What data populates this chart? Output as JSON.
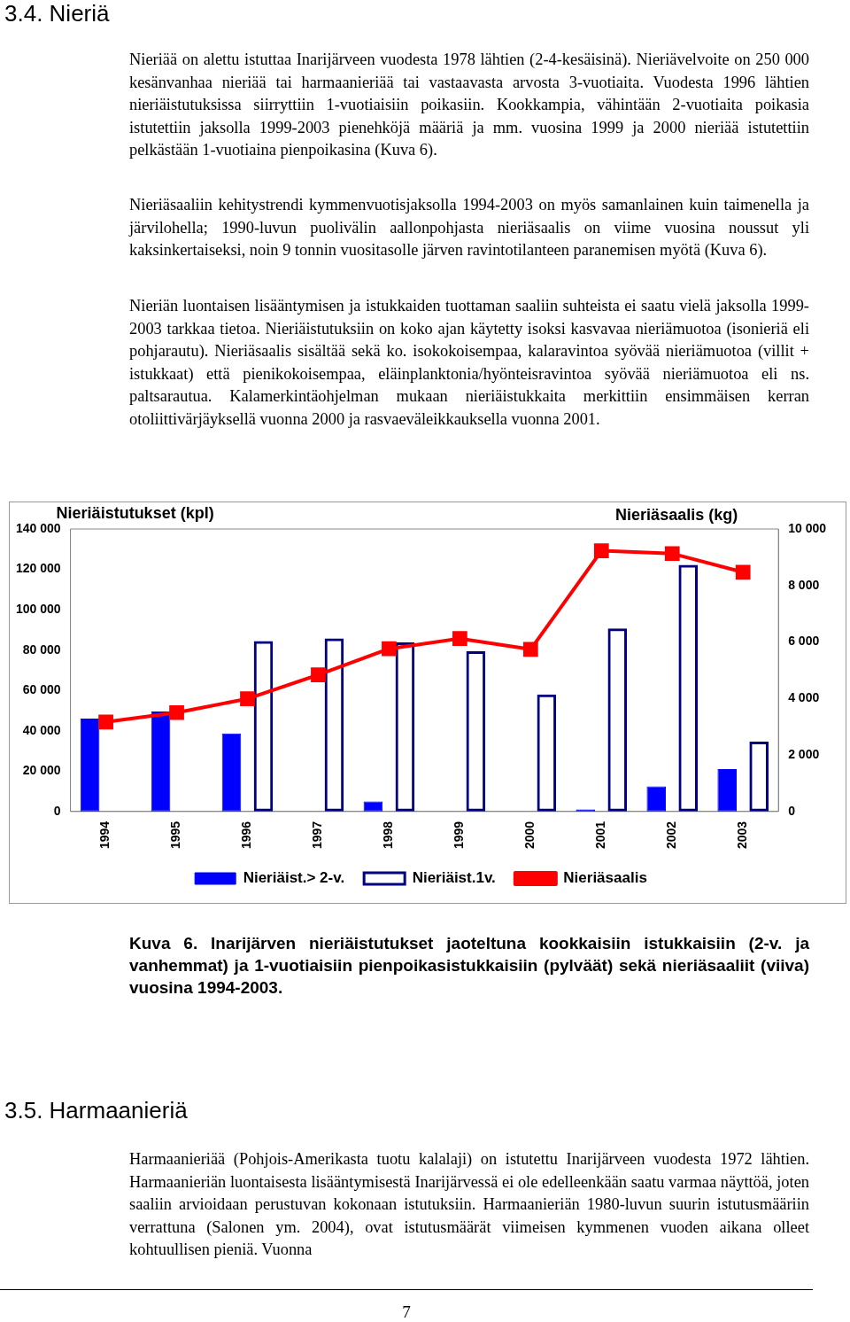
{
  "chart_data": {
    "type": "bar",
    "categories": [
      "1994",
      "1995",
      "1996",
      "1997",
      "1998",
      "1999",
      "2000",
      "2001",
      "2002",
      "2003"
    ],
    "series": [
      {
        "name": "Nieriäist.> 2-v.",
        "color": "#0000ff",
        "values": [
          46000,
          49500,
          38700,
          0,
          5000,
          0,
          0,
          1000,
          12500,
          21000
        ]
      },
      {
        "name": "Nieriäist.1v.",
        "color": "#000080",
        "values": [
          0,
          0,
          84500,
          85800,
          83800,
          79400,
          58000,
          90700,
          122200,
          34600
        ]
      },
      {
        "name": "Nieriäsaalis",
        "type": "line",
        "axis": "y2",
        "color": "#ff0000",
        "marker": "square",
        "values": [
          3170,
          3500,
          3990,
          4840,
          5760,
          6120,
          5740,
          9230,
          9130,
          8470
        ]
      }
    ],
    "ylabel": "Nieriäistutukset (kpl)",
    "y2label": "Nieriäsaalis (kg)",
    "ylim": [
      0,
      140000
    ],
    "yticks": [
      {
        "value": 0,
        "label": "0"
      },
      {
        "value": 20000,
        "label": "20 000"
      },
      {
        "value": 40000,
        "label": "40 000"
      },
      {
        "value": 60000,
        "label": "60 000"
      },
      {
        "value": 80000,
        "label": "80 000"
      },
      {
        "value": 100000,
        "label": "100 000"
      },
      {
        "value": 120000,
        "label": "120 000"
      },
      {
        "value": 140000,
        "label": "140 000"
      }
    ],
    "y2lim": [
      0,
      10000
    ],
    "y2ticks": [
      {
        "value": 0,
        "label": "0"
      },
      {
        "value": 2000,
        "label": "2 000"
      },
      {
        "value": 4000,
        "label": "4 000"
      },
      {
        "value": 6000,
        "label": "6 000"
      },
      {
        "value": 8000,
        "label": "8 000"
      },
      {
        "value": 10000,
        "label": "10 000"
      }
    ],
    "grid": false,
    "legend": "bottom",
    "annotations": [
      "3.4. Nieriä",
      "Nieriää on alettu istuttaa Inarijärveen vuodesta 1978 lähtien (2-4-kesäisinä). Nieriävelvoite on 250 000 kesänvanhaa nieriää tai harmaanieriää tai vastaavasta arvosta 3-vuotiaita. Vuodesta 1996 lähtien nieriäistutuksissa siirryttiin 1-vuotiaisiin poikasiin. Kookkampia, vähintään 2-vuotiaita poikasia istutettiin jaksolla 1999-2003 pienehköjä määriä ja mm. vuosina 1999 ja 2000 nieriää istutettiin pelkästään 1-vuotiaina pienpoikasina (Kuva 6).",
      "Nieriäsaaliin kehitystrendi kymmenvuotisjaksolla 1994-2003 on myös samanlainen kuin taimenella ja järvilohella; 1990-luvun puolivälin aallonpohjasta nieriäsaalis on viime vuosina noussut yli kaksinkertaiseksi, noin 9 tonnin vuositasolle järven ravintotilanteen paranemisen myötä (Kuva 6).",
      "Nieriän luontaisen lisääntymisen ja istukkaiden tuottaman saaliin suhteista ei saatu vielä jaksolla 1999-2003 tarkkaa tietoa. Nieriäistutuksiin on koko ajan käytetty isoksi kasvavaa nieriämuotoa (isonieriä eli pohjarautu). Nieriäsaalis sisältää sekä ko. isokokoisempaa, kalaravintoa syövää nieriämuotoa (villit + istukkaat) että pienikokoisempaa, eläinplanktonia/hyönteisravintoa syövää nieriämuotoa eli ns. paltsarautua. Kalamerkintäohjelman mukaan nieriäistukkaita merkittiin ensimmäisen kerran otoliittivärjäyksellä vuonna 2000 ja rasvaeväleikkauksella vuonna 2001.",
      "Kuva 6. Inarijärven nieriäistutukset jaoteltuna kookkaisiin istukkaisiin (2-v. ja vanhemmat) ja 1-vuotiaisiin pienpoikasistukkaisiin (pylväät) sekä nieriäsaaliit (viiva) vuosina 1994-2003.",
      "3.5. Harmaanieriä",
      "Harmaanieriää (Pohjois-Amerikasta tuotu kalalaji) on istutettu Inarijärveen vuodesta 1972 lähtien. Harmaanieriän luontaisesta lisääntymisestä Inarijärvessä ei ole edelleenkään saatu varmaa näyttöä, joten saaliin arvioidaan perustuvan kokonaan istutuksiin. Harmaanieriän 1980-luvun suurin istutusmääriin verrattuna (Salonen ym. 2004), ovat istutusmäärät viimeisen kymmenen vuoden aikana olleet kohtuullisen pieniä. Vuonna",
      "7"
    ]
  }
}
